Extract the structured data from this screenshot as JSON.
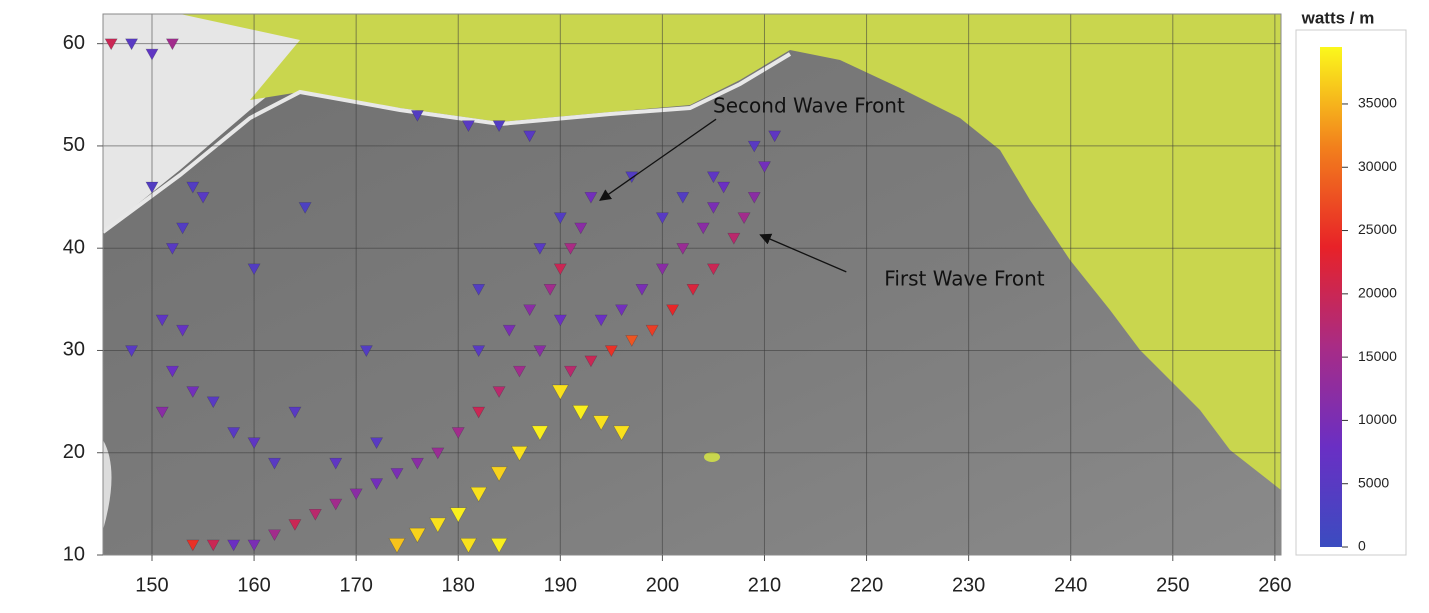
{
  "chart_data": {
    "type": "map",
    "xlim": [
      145.2,
      260.6
    ],
    "ylim": [
      10,
      62.9
    ],
    "xticks": [
      150,
      160,
      170,
      180,
      190,
      200,
      210,
      220,
      230,
      240,
      250,
      260
    ],
    "yticks": [
      10,
      20,
      30,
      40,
      50,
      60
    ],
    "grid": true,
    "colorbar_label": "watts / m",
    "clim": [
      0,
      39500
    ],
    "cticks": [
      0,
      5000,
      10000,
      15000,
      20000,
      25000,
      30000,
      35000
    ],
    "colormap": [
      "#3b4cc0",
      "#6a2fc4",
      "#a82c86",
      "#e82228",
      "#f2801c",
      "#fbf81c"
    ],
    "annotations": [
      {
        "text": "Second Wave Front",
        "x": 193.5,
        "y": 44.5
      },
      {
        "text": "First Wave Front",
        "x": 209.2,
        "y": 41.3
      }
    ],
    "markers": [
      {
        "lon": 211,
        "lat": 51,
        "power": 6000
      },
      {
        "lon": 210,
        "lat": 48,
        "power": 9000
      },
      {
        "lon": 209,
        "lat": 45,
        "power": 12000
      },
      {
        "lon": 208,
        "lat": 43,
        "power": 15000
      },
      {
        "lon": 207,
        "lat": 41,
        "power": 18000
      },
      {
        "lon": 205,
        "lat": 38,
        "power": 20000
      },
      {
        "lon": 203,
        "lat": 36,
        "power": 22000
      },
      {
        "lon": 201,
        "lat": 34,
        "power": 24000
      },
      {
        "lon": 199,
        "lat": 32,
        "power": 26000
      },
      {
        "lon": 197,
        "lat": 31,
        "power": 28000
      },
      {
        "lon": 195,
        "lat": 30,
        "power": 25000
      },
      {
        "lon": 193,
        "lat": 29,
        "power": 20000
      },
      {
        "lon": 191,
        "lat": 28,
        "power": 18000
      },
      {
        "lon": 206,
        "lat": 46,
        "power": 8000
      },
      {
        "lon": 205,
        "lat": 44,
        "power": 10000
      },
      {
        "lon": 204,
        "lat": 42,
        "power": 12000
      },
      {
        "lon": 202,
        "lat": 40,
        "power": 14000
      },
      {
        "lon": 200,
        "lat": 38,
        "power": 12000
      },
      {
        "lon": 198,
        "lat": 36,
        "power": 10000
      },
      {
        "lon": 196,
        "lat": 34,
        "power": 9000
      },
      {
        "lon": 194,
        "lat": 33,
        "power": 8000
      },
      {
        "lon": 193,
        "lat": 45,
        "power": 9000
      },
      {
        "lon": 192,
        "lat": 42,
        "power": 12000
      },
      {
        "lon": 191,
        "lat": 40,
        "power": 16000
      },
      {
        "lon": 190,
        "lat": 38,
        "power": 20000
      },
      {
        "lon": 189,
        "lat": 36,
        "power": 15000
      },
      {
        "lon": 187,
        "lat": 34,
        "power": 12000
      },
      {
        "lon": 185,
        "lat": 32,
        "power": 10000
      },
      {
        "lon": 190,
        "lat": 33,
        "power": 8000
      },
      {
        "lon": 188,
        "lat": 30,
        "power": 12000
      },
      {
        "lon": 186,
        "lat": 28,
        "power": 15000
      },
      {
        "lon": 184,
        "lat": 26,
        "power": 18000
      },
      {
        "lon": 182,
        "lat": 24,
        "power": 20000
      },
      {
        "lon": 180,
        "lat": 22,
        "power": 15000
      },
      {
        "lon": 178,
        "lat": 20,
        "power": 14000
      },
      {
        "lon": 176,
        "lat": 19,
        "power": 12000
      },
      {
        "lon": 174,
        "lat": 18,
        "power": 10000
      },
      {
        "lon": 172,
        "lat": 17,
        "power": 9000
      },
      {
        "lon": 170,
        "lat": 16,
        "power": 12000
      },
      {
        "lon": 168,
        "lat": 15,
        "power": 15000
      },
      {
        "lon": 166,
        "lat": 14,
        "power": 18000
      },
      {
        "lon": 164,
        "lat": 13,
        "power": 20000
      },
      {
        "lon": 162,
        "lat": 12,
        "power": 15000
      },
      {
        "lon": 160,
        "lat": 11,
        "power": 10000
      },
      {
        "lon": 158,
        "lat": 11,
        "power": 8000
      },
      {
        "lon": 156,
        "lat": 11,
        "power": 20000
      },
      {
        "lon": 154,
        "lat": 11,
        "power": 25000
      },
      {
        "lon": 190,
        "lat": 26,
        "power": 38000
      },
      {
        "lon": 192,
        "lat": 24,
        "power": 39000
      },
      {
        "lon": 194,
        "lat": 23,
        "power": 38000
      },
      {
        "lon": 188,
        "lat": 22,
        "power": 39000
      },
      {
        "lon": 186,
        "lat": 20,
        "power": 38000
      },
      {
        "lon": 184,
        "lat": 18,
        "power": 37000
      },
      {
        "lon": 182,
        "lat": 16,
        "power": 38000
      },
      {
        "lon": 180,
        "lat": 14,
        "power": 39000
      },
      {
        "lon": 178,
        "lat": 13,
        "power": 38000
      },
      {
        "lon": 176,
        "lat": 12,
        "power": 37000
      },
      {
        "lon": 174,
        "lat": 11,
        "power": 36000
      },
      {
        "lon": 181,
        "lat": 11,
        "power": 38000
      },
      {
        "lon": 184,
        "lat": 11,
        "power": 39000
      },
      {
        "lon": 196,
        "lat": 22,
        "power": 38000
      },
      {
        "lon": 148,
        "lat": 60,
        "power": 5000
      },
      {
        "lon": 150,
        "lat": 59,
        "power": 6000
      },
      {
        "lon": 146,
        "lat": 60,
        "power": 20000
      },
      {
        "lon": 152,
        "lat": 60,
        "power": 15000
      },
      {
        "lon": 154,
        "lat": 46,
        "power": 4000
      },
      {
        "lon": 155,
        "lat": 45,
        "power": 5000
      },
      {
        "lon": 153,
        "lat": 42,
        "power": 4000
      },
      {
        "lon": 152,
        "lat": 40,
        "power": 5000
      },
      {
        "lon": 151,
        "lat": 33,
        "power": 6000
      },
      {
        "lon": 153,
        "lat": 32,
        "power": 7000
      },
      {
        "lon": 152,
        "lat": 28,
        "power": 8000
      },
      {
        "lon": 154,
        "lat": 26,
        "power": 9000
      },
      {
        "lon": 151,
        "lat": 24,
        "power": 12000
      },
      {
        "lon": 156,
        "lat": 25,
        "power": 5000
      },
      {
        "lon": 158,
        "lat": 22,
        "power": 5000
      },
      {
        "lon": 160,
        "lat": 21,
        "power": 6000
      },
      {
        "lon": 162,
        "lat": 19,
        "power": 5000
      },
      {
        "lon": 165,
        "lat": 44,
        "power": 3000
      },
      {
        "lon": 171,
        "lat": 30,
        "power": 4000
      },
      {
        "lon": 182,
        "lat": 30,
        "power": 5000
      },
      {
        "lon": 181,
        "lat": 52,
        "power": 5000
      },
      {
        "lon": 184,
        "lat": 52,
        "power": 4000
      },
      {
        "lon": 187,
        "lat": 51,
        "power": 5000
      },
      {
        "lon": 190,
        "lat": 43,
        "power": 4000
      },
      {
        "lon": 188,
        "lat": 40,
        "power": 5000
      },
      {
        "lon": 182,
        "lat": 36,
        "power": 4000
      },
      {
        "lon": 200,
        "lat": 43,
        "power": 5000
      },
      {
        "lon": 202,
        "lat": 45,
        "power": 4000
      },
      {
        "lon": 205,
        "lat": 47,
        "power": 6000
      },
      {
        "lon": 209,
        "lat": 50,
        "power": 5000
      },
      {
        "lon": 197,
        "lat": 47,
        "power": 4000
      },
      {
        "lon": 150,
        "lat": 46,
        "power": 4000
      },
      {
        "lon": 148,
        "lat": 30,
        "power": 5000
      },
      {
        "lon": 176,
        "lat": 53,
        "power": 4000
      },
      {
        "lon": 160,
        "lat": 38,
        "power": 4000
      },
      {
        "lon": 164,
        "lat": 24,
        "power": 5000
      },
      {
        "lon": 168,
        "lat": 19,
        "power": 6000
      },
      {
        "lon": 172,
        "lat": 21,
        "power": 5000
      }
    ]
  }
}
